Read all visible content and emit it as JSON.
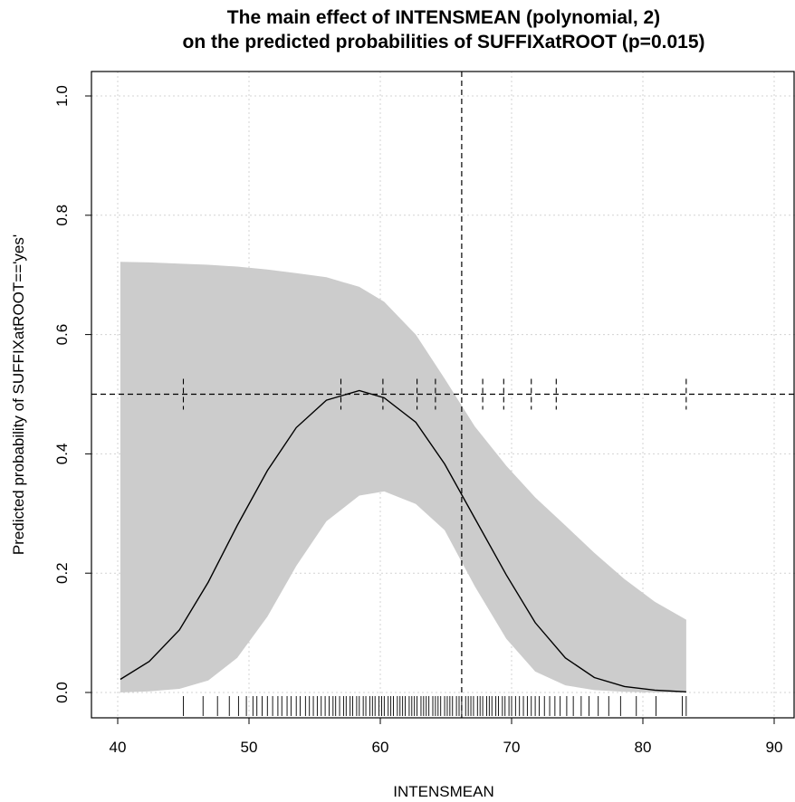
{
  "chart_data": {
    "type": "line",
    "title_line1": "The main effect of INTENSMEAN (polynomial, 2)",
    "title_line2": "on the predicted probabilities of SUFFIXatROOT (p=0.015)",
    "xlabel": "INTENSMEAN",
    "ylabel": "Predicted probability of SUFFIXatROOT=='yes'",
    "xlim": [
      40,
      90
    ],
    "ylim": [
      0,
      1
    ],
    "x_ticks": [
      40,
      50,
      60,
      70,
      80,
      90
    ],
    "y_ticks": [
      0.0,
      0.2,
      0.4,
      0.6,
      0.8,
      1.0
    ],
    "y_tick_labels": [
      "0.0",
      "0.2",
      "0.4",
      "0.6",
      "0.8",
      "1.0"
    ],
    "grid": true,
    "colors": {
      "band": "#cccccc",
      "line": "#000000",
      "grid": "#d3d3d3"
    },
    "x": [
      40.2,
      42.4,
      44.7,
      46.9,
      49.1,
      51.4,
      53.6,
      55.9,
      58.4,
      60.3,
      62.7,
      64.9,
      67.2,
      69.6,
      71.8,
      74.1,
      76.3,
      78.6,
      80.9,
      83.3
    ],
    "fit": [
      0.022,
      0.052,
      0.105,
      0.185,
      0.28,
      0.372,
      0.444,
      0.49,
      0.506,
      0.494,
      0.453,
      0.383,
      0.292,
      0.197,
      0.117,
      0.058,
      0.025,
      0.01,
      0.004,
      0.001
    ],
    "lower": [
      0.0,
      0.002,
      0.006,
      0.02,
      0.058,
      0.127,
      0.212,
      0.287,
      0.33,
      0.337,
      0.316,
      0.272,
      0.178,
      0.09,
      0.035,
      0.012,
      0.004,
      0.001,
      0.0,
      0.0
    ],
    "upper": [
      0.722,
      0.721,
      0.719,
      0.717,
      0.714,
      0.709,
      0.703,
      0.696,
      0.68,
      0.655,
      0.6,
      0.526,
      0.446,
      0.38,
      0.327,
      0.28,
      0.234,
      0.19,
      0.152,
      0.122
    ],
    "reference_lines": {
      "h": 0.5,
      "v": 66.2
    },
    "threshold_marks": [
      45.0,
      57.0,
      60.2,
      62.8,
      64.2,
      67.8,
      69.4,
      71.5,
      73.4,
      83.3
    ],
    "rug": [
      45.0,
      46.5,
      47.6,
      48.5,
      49.2,
      49.8,
      50.3,
      50.6,
      51.0,
      51.4,
      51.8,
      52.2,
      52.5,
      52.9,
      53.2,
      53.6,
      53.9,
      54.3,
      54.6,
      54.9,
      55.2,
      55.5,
      55.8,
      56.1,
      56.4,
      56.6,
      56.9,
      57.2,
      57.4,
      57.7,
      57.9,
      58.2,
      58.4,
      58.7,
      58.9,
      59.2,
      59.4,
      59.6,
      59.9,
      60.1,
      60.3,
      60.6,
      60.8,
      61.0,
      61.3,
      61.5,
      61.7,
      61.9,
      62.2,
      62.4,
      62.6,
      62.8,
      63.1,
      63.3,
      63.5,
      63.7,
      64.0,
      64.2,
      64.4,
      64.6,
      64.9,
      65.1,
      65.3,
      65.5,
      65.8,
      66.0,
      66.2,
      66.5,
      66.7,
      66.9,
      67.1,
      67.4,
      67.6,
      67.8,
      68.1,
      68.3,
      68.5,
      68.8,
      69.0,
      69.3,
      69.5,
      69.8,
      70.0,
      70.3,
      70.6,
      70.9,
      71.2,
      71.5,
      71.8,
      72.1,
      72.5,
      72.9,
      73.3,
      73.7,
      74.2,
      74.7,
      75.3,
      75.9,
      76.6,
      77.4,
      78.3,
      79.5,
      81.0,
      83.0,
      83.3
    ]
  }
}
